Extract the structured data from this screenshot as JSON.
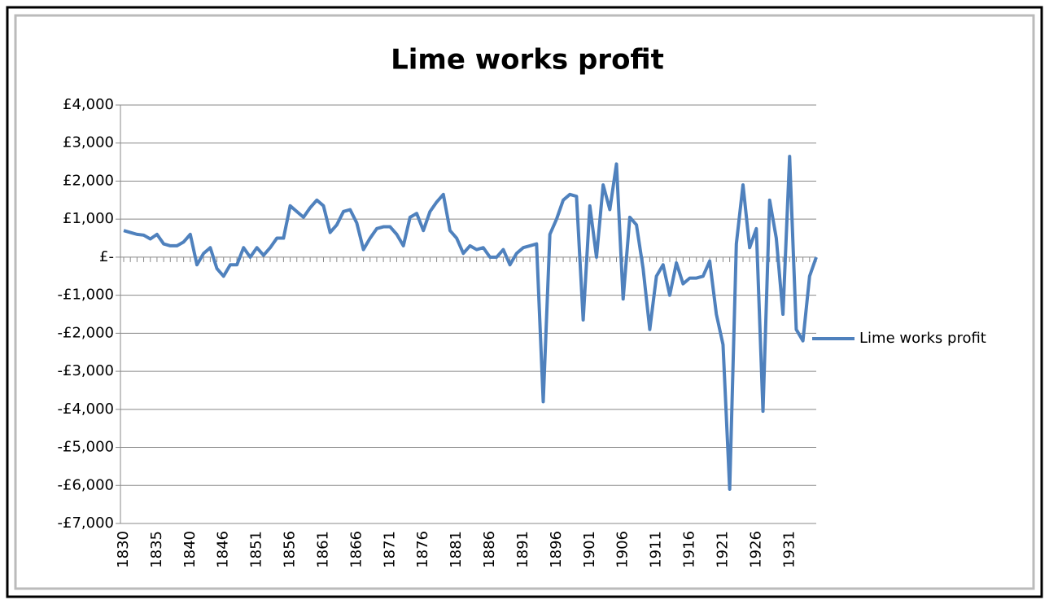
{
  "chart_data": {
    "type": "line",
    "title": "Lime works profit",
    "categories": [
      "1830",
      null,
      null,
      null,
      null,
      "1835",
      null,
      null,
      null,
      null,
      "1840",
      null,
      null,
      null,
      null,
      "1846",
      null,
      null,
      null,
      null,
      "1851",
      null,
      null,
      null,
      null,
      "1856",
      null,
      null,
      null,
      null,
      "1861",
      null,
      null,
      null,
      null,
      "1866",
      null,
      null,
      null,
      null,
      "1871",
      null,
      null,
      null,
      null,
      "1876",
      null,
      null,
      null,
      null,
      "1881",
      null,
      null,
      null,
      null,
      "1886",
      null,
      null,
      null,
      null,
      "1891",
      null,
      null,
      null,
      null,
      "1896",
      null,
      null,
      null,
      null,
      "1901",
      null,
      null,
      null,
      null,
      "1906",
      null,
      null,
      null,
      null,
      "1911",
      null,
      null,
      null,
      null,
      "1916",
      null,
      null,
      null,
      null,
      "1921",
      null,
      null,
      null,
      null,
      "1926",
      null,
      null,
      null,
      null,
      "1931",
      null,
      null,
      null,
      null
    ],
    "series": [
      {
        "name": "Lime works profit",
        "color": "#4f81bd",
        "values": [
          700,
          650,
          600,
          580,
          480,
          600,
          350,
          300,
          300,
          400,
          600,
          -200,
          100,
          250,
          -300,
          -500,
          -200,
          -200,
          250,
          0,
          250,
          50,
          250,
          500,
          500,
          1350,
          1200,
          1050,
          1300,
          1500,
          1350,
          650,
          850,
          1200,
          1250,
          900,
          200,
          500,
          750,
          800,
          800,
          600,
          300,
          1050,
          1150,
          700,
          1200,
          1450,
          1650,
          700,
          500,
          100,
          300,
          200,
          250,
          0,
          0,
          200,
          -200,
          100,
          250,
          300,
          350,
          -3800,
          600,
          1000,
          1500,
          1650,
          1600,
          -1650,
          1350,
          0,
          1900,
          1250,
          2450,
          -1100,
          1050,
          850,
          -300,
          -1900,
          -500,
          -200,
          -1000,
          -150,
          -700,
          -550,
          -550,
          -500,
          -100,
          -1500,
          -2300,
          -6100,
          350,
          1900,
          250,
          750,
          -4050,
          1500,
          500,
          -1500,
          2650,
          -1900,
          -2200,
          -500,
          0
        ]
      }
    ],
    "ylim": [
      -7000,
      4000
    ],
    "yticks": [
      {
        "value": -7000,
        "label": "-£7,000"
      },
      {
        "value": -6000,
        "label": "-£6,000"
      },
      {
        "value": -5000,
        "label": "-£5,000"
      },
      {
        "value": -4000,
        "label": "-£4,000"
      },
      {
        "value": -3000,
        "label": "-£3,000"
      },
      {
        "value": -2000,
        "label": "-£2,000"
      },
      {
        "value": -1000,
        "label": "-£1,000"
      },
      {
        "value": 0,
        "label": "£-"
      },
      {
        "value": 1000,
        "label": "£1,000"
      },
      {
        "value": 2000,
        "label": "£2,000"
      },
      {
        "value": 3000,
        "label": "£3,000"
      },
      {
        "value": 4000,
        "label": "£4,000"
      }
    ],
    "grid": true,
    "legend": "right"
  }
}
